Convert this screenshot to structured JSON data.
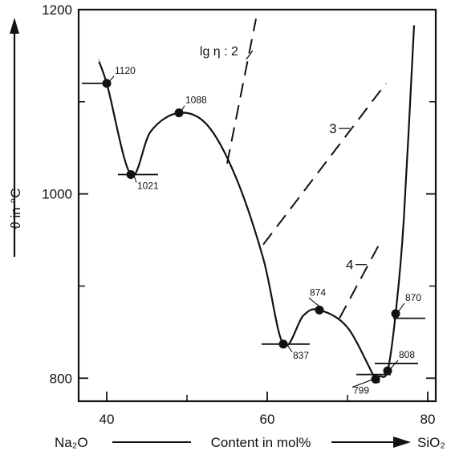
{
  "chart_data": {
    "type": "line",
    "title": "",
    "ylabel": "ϑ in °C",
    "x_axis": {
      "left_label": "Na₂O",
      "center_label": "Content in mol%",
      "right_label": "SiO₂"
    },
    "xlim": [
      36.5,
      81
    ],
    "ylim": [
      775,
      1200
    ],
    "xticks": [
      40,
      60,
      80
    ],
    "xtick_labels": [
      "40",
      "60",
      "80"
    ],
    "yticks": [
      800,
      1000,
      1200
    ],
    "ytick_labels": [
      "800",
      "1000",
      "1200"
    ],
    "grid": false,
    "liquidus": [
      {
        "x": 38.5,
        "y": 1154
      },
      {
        "x": 40.0,
        "y": 1120
      },
      {
        "x": 43.0,
        "y": 1021
      },
      {
        "x": 45.5,
        "y": 1068
      },
      {
        "x": 49.0,
        "y": 1088
      },
      {
        "x": 52.5,
        "y": 1075
      },
      {
        "x": 56.0,
        "y": 1020
      },
      {
        "x": 59.5,
        "y": 930
      },
      {
        "x": 62.0,
        "y": 837
      },
      {
        "x": 64.5,
        "y": 868
      },
      {
        "x": 66.5,
        "y": 874
      },
      {
        "x": 70.0,
        "y": 855
      },
      {
        "x": 73.5,
        "y": 799
      },
      {
        "x": 74.0,
        "y": 802
      },
      {
        "x": 75.0,
        "y": 808
      },
      {
        "x": 76.0,
        "y": 870
      },
      {
        "x": 77.0,
        "y": 970
      },
      {
        "x": 78.3,
        "y": 1183
      }
    ],
    "points": [
      {
        "x": 40.0,
        "y": 1120,
        "label": "1120"
      },
      {
        "x": 43.0,
        "y": 1021,
        "label": "1021"
      },
      {
        "x": 49.0,
        "y": 1088,
        "label": "1088"
      },
      {
        "x": 62.0,
        "y": 837,
        "label": "837"
      },
      {
        "x": 66.5,
        "y": 874,
        "label": "874"
      },
      {
        "x": 73.5,
        "y": 799,
        "label": "799"
      },
      {
        "x": 75.0,
        "y": 808,
        "label": "808"
      },
      {
        "x": 76.0,
        "y": 870,
        "label": "870"
      }
    ],
    "isoviscosity_lines": [
      {
        "label": "lg η : 2",
        "x": [
          55.0,
          58.6
        ],
        "y": [
          1033,
          1190
        ]
      },
      {
        "label": "3",
        "x": [
          59.5,
          74.8
        ],
        "y": [
          945,
          1120
        ]
      },
      {
        "label": "4",
        "x": [
          69.0,
          74.0
        ],
        "y": [
          865,
          946
        ]
      }
    ]
  }
}
